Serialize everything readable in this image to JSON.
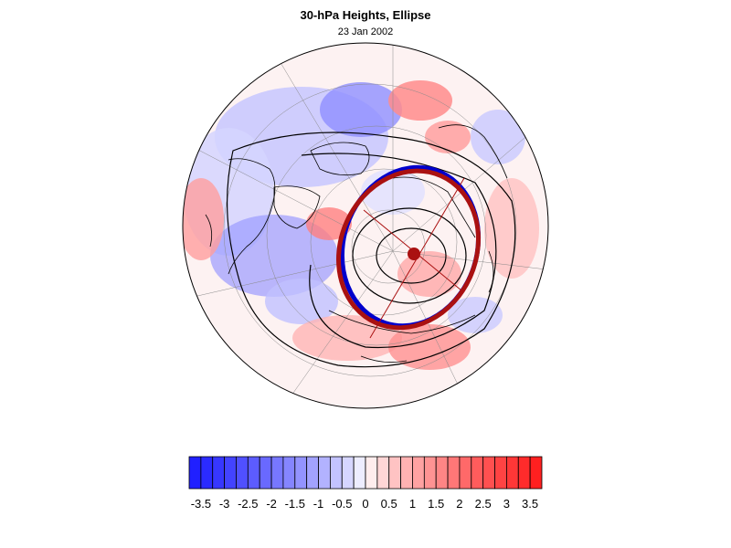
{
  "title": "30-hPa Heights, Ellipse",
  "date": "23 Jan 2002",
  "projection": "polar-stereographic-north",
  "colorbar": {
    "min": -3.75,
    "max": 3.75,
    "step": 0.25,
    "tick_labels": [
      "-3.5",
      "-3",
      "-2.5",
      "-2",
      "-1.5",
      "-1",
      "-0.5",
      "0",
      "0.5",
      "1",
      "1.5",
      "2",
      "2.5",
      "3",
      "3.5"
    ],
    "color_low": "#1a1aff",
    "color_mid": "#ffffff",
    "color_high": "#ff1a1a"
  },
  "overlays": {
    "ellipse_observed_color": "#0000cc",
    "ellipse_fit_color": "#aa1111",
    "center_marker_color": "#aa1111"
  }
}
